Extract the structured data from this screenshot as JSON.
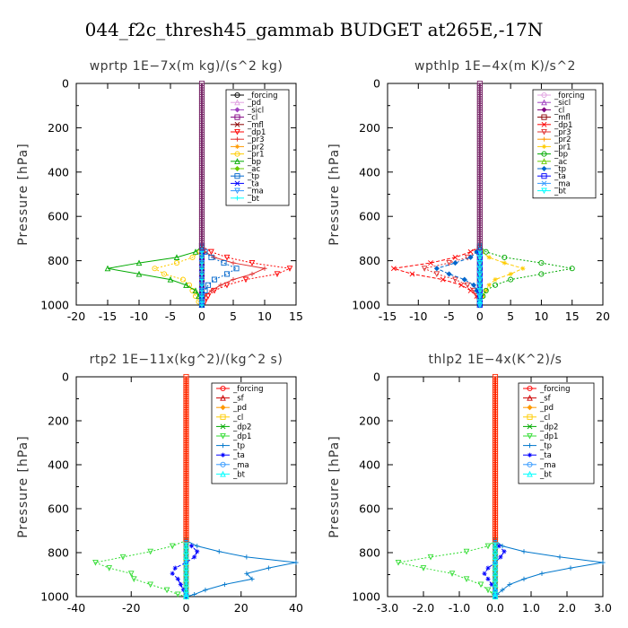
{
  "title": "044_f2c_thresh45_gammab  BUDGET at265E,-17N",
  "chart_data": [
    {
      "type": "line",
      "title": "wprtp  1E−7x(m kg)/(s^2 kg)",
      "ylabel": "Pressure [hPa]",
      "xlim": [
        -20,
        15
      ],
      "ylim": [
        1000,
        0
      ],
      "x_ticks": [
        "-20",
        "-15",
        "-10",
        "-5",
        "0",
        "5",
        "10",
        "15"
      ],
      "y_ticks": [
        "0",
        "200",
        "400",
        "600",
        "800",
        "1000"
      ],
      "legend_position": "top-right",
      "y": [
        735,
        760,
        785,
        810,
        835,
        860,
        885,
        910,
        935,
        960,
        985,
        1000
      ],
      "series": [
        {
          "name": "_forcing",
          "color": "#000000",
          "values": [
            0,
            0,
            0,
            0,
            0,
            0,
            0,
            0,
            0,
            0,
            0,
            0
          ]
        },
        {
          "name": "_pd",
          "color": "#e0a0e0",
          "values": [
            0,
            0,
            0,
            0,
            0,
            0,
            0,
            0,
            0,
            0,
            0,
            0
          ]
        },
        {
          "name": "_sicl",
          "color": "#a040c0",
          "values": [
            0,
            0,
            0,
            0,
            0,
            0,
            0,
            0,
            0,
            0,
            0,
            0
          ]
        },
        {
          "name": "_cl",
          "color": "#800080",
          "values": [
            0,
            0,
            0,
            0,
            0,
            0,
            0,
            0,
            0,
            0,
            0,
            0
          ]
        },
        {
          "name": "_mfl",
          "color": "#8b0000",
          "values": [
            0,
            0,
            0,
            0,
            0,
            0,
            0,
            0,
            0,
            0,
            0,
            0
          ]
        },
        {
          "name": "_dp1",
          "color": "#ff0000",
          "values": [
            0,
            1.5,
            4,
            8,
            14,
            12,
            7,
            4,
            2,
            1,
            0.5,
            0
          ]
        },
        {
          "name": "_pr3",
          "color": "#e03030",
          "values": [
            0,
            0.5,
            2,
            5,
            10,
            8,
            5,
            3,
            1.5,
            0.5,
            0,
            0
          ]
        },
        {
          "name": "_pr2",
          "color": "#ff9900",
          "values": [
            0,
            0,
            0,
            0,
            0,
            0,
            0,
            0,
            0,
            0,
            0,
            0
          ]
        },
        {
          "name": "_pr1",
          "color": "#ffcc00",
          "values": [
            0,
            -0.3,
            -1.5,
            -4,
            -7.5,
            -6,
            -3,
            -2,
            -1.5,
            -1,
            -0.5,
            0
          ]
        },
        {
          "name": "_bp",
          "color": "#00aa00",
          "values": [
            0,
            -1,
            -4,
            -10,
            -15,
            -10,
            -5,
            -2.5,
            -1,
            -0.5,
            0,
            0
          ]
        },
        {
          "name": "_ac",
          "color": "#66cc00",
          "values": [
            0,
            0,
            0,
            0,
            0,
            0,
            0,
            0,
            0,
            0,
            0,
            0
          ]
        },
        {
          "name": "_tp",
          "color": "#0066cc",
          "values": [
            0,
            0.5,
            1.5,
            3.5,
            5.5,
            4,
            2,
            1,
            0.5,
            0,
            0,
            0
          ]
        },
        {
          "name": "_ta",
          "color": "#0000ff",
          "values": [
            0,
            0,
            0,
            0,
            0,
            0,
            0,
            0,
            0,
            0,
            0,
            0
          ]
        },
        {
          "name": "_ma",
          "color": "#3399ff",
          "values": [
            0,
            0,
            0,
            0,
            0,
            0,
            0,
            0,
            0,
            0,
            0,
            0
          ]
        },
        {
          "name": "_bt",
          "color": "#00ffff",
          "values": [
            0,
            0,
            0,
            0,
            0,
            0,
            0,
            0,
            0,
            0,
            0,
            0
          ]
        }
      ]
    },
    {
      "type": "line",
      "title": "wpthlp  1E−4x(m K)/s^2",
      "ylabel": "Pressure [hPa]",
      "xlim": [
        -15,
        20
      ],
      "ylim": [
        1000,
        0
      ],
      "x_ticks": [
        "-15",
        "-10",
        "-5",
        "0",
        "5",
        "10",
        "15",
        "20"
      ],
      "y_ticks": [
        "0",
        "200",
        "400",
        "600",
        "800",
        "1000"
      ],
      "legend_position": "top-right",
      "y": [
        735,
        760,
        785,
        810,
        835,
        860,
        885,
        910,
        935,
        960,
        985,
        1000
      ],
      "series": [
        {
          "name": "_forcing",
          "color": "#e0a0e0",
          "values": [
            0,
            0,
            0,
            0,
            0,
            0,
            0,
            0,
            0,
            0,
            0,
            0
          ]
        },
        {
          "name": "_sicl",
          "color": "#a040c0",
          "values": [
            0,
            0,
            0,
            0,
            0,
            0,
            0,
            0,
            0,
            0,
            0,
            0
          ]
        },
        {
          "name": "_cl",
          "color": "#800080",
          "values": [
            0,
            0,
            0,
            0,
            0,
            0,
            0,
            0,
            0,
            0,
            0,
            0
          ]
        },
        {
          "name": "_mfl",
          "color": "#8b0000",
          "values": [
            0,
            0,
            0,
            0,
            0,
            0,
            0,
            0,
            0,
            0,
            0,
            0
          ]
        },
        {
          "name": "_dp1",
          "color": "#ff0000",
          "values": [
            0,
            -1.5,
            -4,
            -8,
            -14,
            -11,
            -6,
            -3,
            -1.5,
            -0.5,
            0,
            0
          ]
        },
        {
          "name": "_pr3",
          "color": "#e03030",
          "values": [
            0,
            -0.5,
            -2,
            -5,
            -9,
            -7,
            -4,
            -2,
            -1,
            -0.5,
            0,
            0
          ]
        },
        {
          "name": "_pr2",
          "color": "#ff9900",
          "values": [
            0,
            0,
            0,
            0,
            0,
            0,
            0,
            0,
            0,
            0,
            0,
            0
          ]
        },
        {
          "name": "_pr1",
          "color": "#ffcc00",
          "values": [
            0,
            0.3,
            1.5,
            4,
            7,
            5,
            2.5,
            1.5,
            1,
            0.5,
            0,
            0
          ]
        },
        {
          "name": "_bp",
          "color": "#00aa00",
          "values": [
            0,
            1,
            4,
            10,
            15,
            10,
            5,
            2.5,
            1,
            0.5,
            0,
            0
          ]
        },
        {
          "name": "_ac",
          "color": "#66cc00",
          "values": [
            0,
            0,
            0,
            0,
            0,
            0,
            0,
            0,
            0,
            0,
            0,
            0
          ]
        },
        {
          "name": "_tp",
          "color": "#0066cc",
          "values": [
            0,
            -0.5,
            -1.5,
            -4,
            -7,
            -5,
            -2.5,
            -1,
            -0.5,
            0,
            0,
            0
          ]
        },
        {
          "name": "_ta",
          "color": "#0000ff",
          "values": [
            0,
            0,
            0,
            0,
            0,
            0,
            0,
            0,
            0,
            0,
            0,
            0
          ]
        },
        {
          "name": "_ma",
          "color": "#3399ff",
          "values": [
            0,
            0,
            0,
            0,
            0,
            0,
            0,
            0,
            0,
            0,
            0,
            0
          ]
        },
        {
          "name": "_bt",
          "color": "#00ffff",
          "values": [
            0,
            0,
            0,
            0,
            0,
            0,
            0,
            0,
            0,
            0,
            0,
            0
          ]
        }
      ]
    },
    {
      "type": "line",
      "title": "rtp2  1E−11x(kg^2)/(kg^2 s)",
      "ylabel": "Pressure [hPa]",
      "xlim": [
        -40,
        40
      ],
      "ylim": [
        1000,
        0
      ],
      "x_ticks": [
        "-40",
        "-20",
        "0",
        "20",
        "40"
      ],
      "y_ticks": [
        "0",
        "200",
        "400",
        "600",
        "800",
        "1000"
      ],
      "legend_position": "top-right",
      "y": [
        745,
        770,
        795,
        820,
        845,
        870,
        895,
        920,
        945,
        970,
        990,
        1000
      ],
      "series": [
        {
          "name": "_forcing",
          "color": "#ff0000",
          "values": [
            0,
            0,
            0,
            0,
            0,
            0,
            0,
            0,
            0,
            0,
            0,
            0
          ]
        },
        {
          "name": "_sf",
          "color": "#cc0000",
          "values": [
            0,
            0,
            0,
            0,
            0,
            0,
            0,
            0,
            0,
            0,
            0,
            0
          ]
        },
        {
          "name": "_pd",
          "color": "#ff9900",
          "values": [
            0,
            0,
            0,
            0,
            0,
            0,
            0,
            0,
            0,
            0,
            0,
            0
          ]
        },
        {
          "name": "_cl",
          "color": "#ffcc00",
          "values": [
            0,
            0,
            0,
            0,
            0,
            0,
            0,
            0,
            0,
            0,
            0,
            0
          ]
        },
        {
          "name": "_dp2",
          "color": "#00aa00",
          "values": [
            0,
            0,
            0,
            0,
            0,
            0,
            0,
            0,
            0,
            0,
            0,
            0
          ]
        },
        {
          "name": "_dp1",
          "color": "#33dd33",
          "values": [
            0,
            -5,
            -13,
            -23,
            -33,
            -28,
            -20,
            -19,
            -13,
            -7,
            -3,
            0
          ]
        },
        {
          "name": "_tp",
          "color": "#0077cc",
          "values": [
            0,
            4,
            12,
            22,
            40,
            30,
            22,
            24,
            14,
            7,
            3,
            0
          ]
        },
        {
          "name": "_ta",
          "color": "#0000ff",
          "values": [
            0,
            2,
            4,
            3,
            0,
            -4,
            -5,
            -3,
            -2,
            -1,
            0,
            0
          ]
        },
        {
          "name": "_ma",
          "color": "#3399ff",
          "values": [
            0,
            0,
            0,
            0,
            0,
            0,
            0,
            0,
            0,
            0,
            0,
            0
          ]
        },
        {
          "name": "_bt",
          "color": "#00ffff",
          "values": [
            0,
            0,
            0,
            0,
            0,
            0,
            0,
            0,
            0,
            0,
            0,
            0
          ]
        }
      ]
    },
    {
      "type": "line",
      "title": "thlp2  1E−4x(K^2)/s",
      "ylabel": "Pressure [hPa]",
      "xlim": [
        -3.0,
        3.0
      ],
      "ylim": [
        1000,
        0
      ],
      "x_ticks": [
        "-3.0",
        "-2.0",
        "-1.0",
        "0.0",
        "1.0",
        "2.0",
        "3.0"
      ],
      "y_ticks": [
        "0",
        "200",
        "400",
        "600",
        "800",
        "1000"
      ],
      "legend_position": "top-right",
      "y": [
        745,
        770,
        795,
        820,
        845,
        870,
        895,
        920,
        945,
        970,
        990,
        1000
      ],
      "series": [
        {
          "name": "_forcing",
          "color": "#ff0000",
          "values": [
            0,
            0,
            0,
            0,
            0,
            0,
            0,
            0,
            0,
            0,
            0,
            0
          ]
        },
        {
          "name": "_sf",
          "color": "#cc0000",
          "values": [
            0,
            0,
            0,
            0,
            0,
            0,
            0,
            0,
            0,
            0,
            0,
            0
          ]
        },
        {
          "name": "_pd",
          "color": "#ff9900",
          "values": [
            0,
            0,
            0,
            0,
            0,
            0,
            0,
            0,
            0,
            0,
            0,
            0
          ]
        },
        {
          "name": "_cl",
          "color": "#ffcc00",
          "values": [
            0,
            0,
            0,
            0,
            0,
            0,
            0,
            0,
            0,
            0,
            0,
            0
          ]
        },
        {
          "name": "_dp2",
          "color": "#00aa00",
          "values": [
            0,
            0,
            0,
            0,
            0,
            0,
            0,
            0,
            0,
            0,
            0,
            0
          ]
        },
        {
          "name": "_dp1",
          "color": "#33dd33",
          "values": [
            0,
            -0.2,
            -0.8,
            -1.8,
            -2.7,
            -2.0,
            -1.2,
            -0.8,
            -0.4,
            -0.2,
            -0.05,
            0
          ]
        },
        {
          "name": "_tp",
          "color": "#0077cc",
          "values": [
            0,
            0.2,
            0.8,
            1.8,
            3.0,
            2.1,
            1.3,
            0.8,
            0.4,
            0.2,
            0.05,
            0
          ]
        },
        {
          "name": "_ta",
          "color": "#0000ff",
          "values": [
            0,
            0.1,
            0.25,
            0.15,
            0,
            -0.2,
            -0.3,
            -0.2,
            -0.1,
            0,
            0,
            0
          ]
        },
        {
          "name": "_ma",
          "color": "#3399ff",
          "values": [
            0,
            0,
            0,
            0,
            0,
            0,
            0,
            0,
            0,
            0,
            0,
            0
          ]
        },
        {
          "name": "_bt",
          "color": "#00ffff",
          "values": [
            0,
            0,
            0,
            0,
            0,
            0,
            0,
            0,
            0,
            0,
            0,
            0
          ]
        }
      ]
    }
  ]
}
